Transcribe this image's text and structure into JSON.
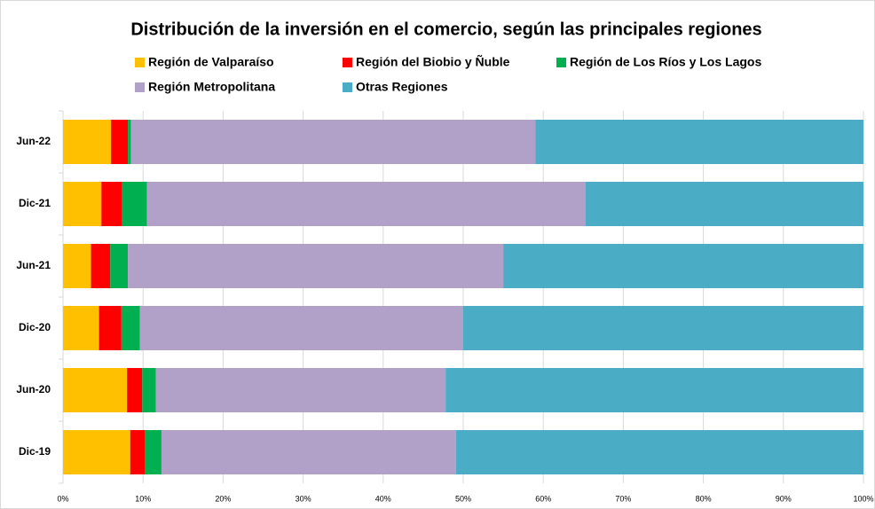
{
  "chart_data": {
    "type": "stacked_barh",
    "title": "Distribución de la inversión en el comercio, según las principales regiones",
    "categories": [
      "Jun-22",
      "Dic-21",
      "Jun-21",
      "Dic-20",
      "Jun-20",
      "Dic-19"
    ],
    "series": [
      {
        "name": "Región de Valparaíso",
        "color": "#ffc000",
        "values": [
          6.0,
          4.8,
          3.5,
          4.5,
          8.0,
          8.4
        ]
      },
      {
        "name": "Región del Biobio y Ñuble",
        "color": "#ff0000",
        "values": [
          2.1,
          2.6,
          2.4,
          2.8,
          1.9,
          1.8
        ]
      },
      {
        "name": "Región de Los Ríos y Los Lagos",
        "color": "#00b050",
        "values": [
          0.4,
          3.1,
          2.2,
          2.3,
          1.7,
          2.1
        ]
      },
      {
        "name": "Región Metropolitana",
        "color": "#b1a0c7",
        "values": [
          50.5,
          54.8,
          46.9,
          40.4,
          36.2,
          36.8
        ]
      },
      {
        "name": "Otras Regiones",
        "color": "#4bacc6",
        "values": [
          41.0,
          34.7,
          45.0,
          50.0,
          52.2,
          50.9
        ]
      }
    ],
    "xlim": [
      0,
      100
    ],
    "xticks": [
      {
        "value": 0,
        "label": "0%"
      },
      {
        "value": 10,
        "label": "10%"
      },
      {
        "value": 20,
        "label": "20%"
      },
      {
        "value": 30,
        "label": "30%"
      },
      {
        "value": 40,
        "label": "40%"
      },
      {
        "value": 50,
        "label": "50%"
      },
      {
        "value": 60,
        "label": "60%"
      },
      {
        "value": 70,
        "label": "70%"
      },
      {
        "value": 80,
        "label": "80%"
      },
      {
        "value": 90,
        "label": "90%"
      },
      {
        "value": 100,
        "label": "100%"
      }
    ],
    "grid": true
  }
}
